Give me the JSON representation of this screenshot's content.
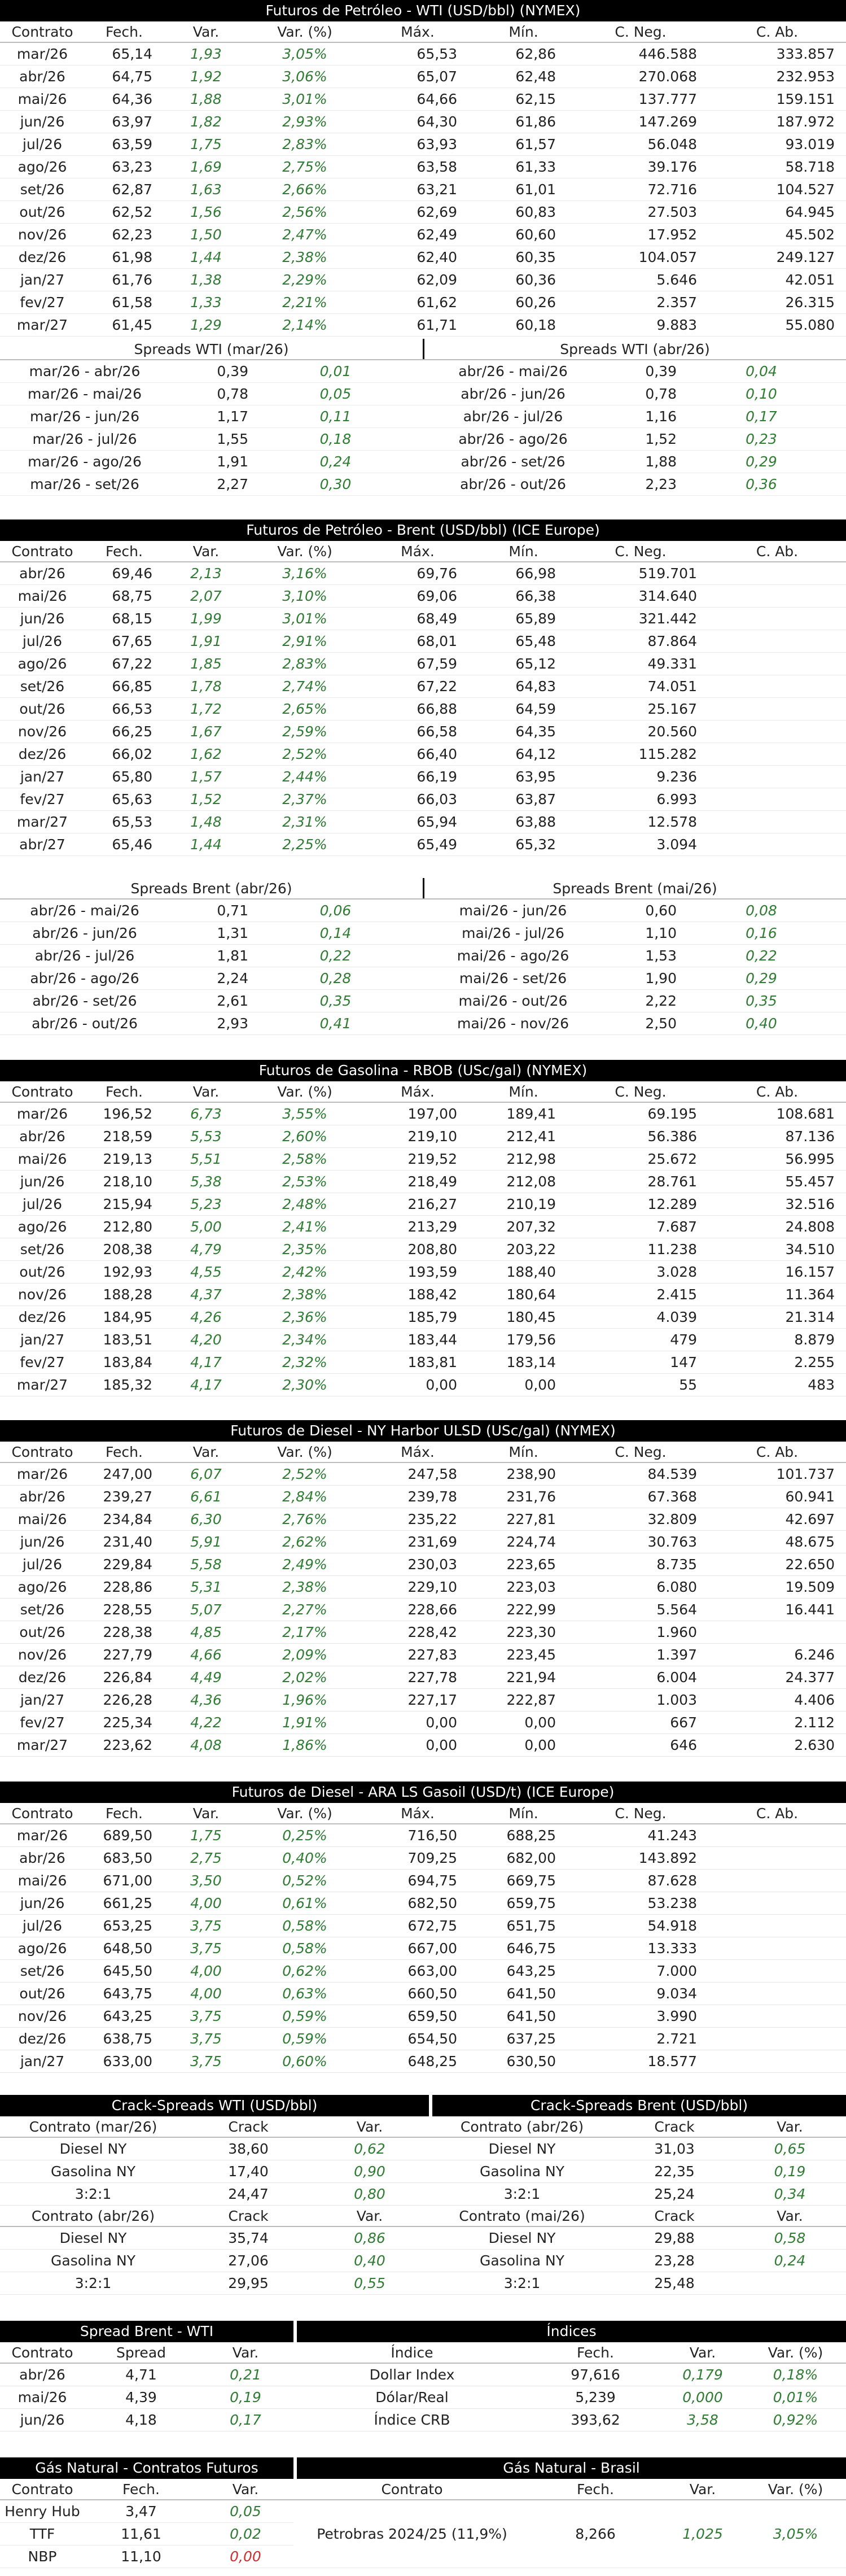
{
  "wti": {
    "title": "Futuros de Petróleo - WTI (USD/bbl) (NYMEX)",
    "cols": [
      "Contrato",
      "Fech.",
      "Var.",
      "Var. (%)",
      "Máx.",
      "Mín.",
      "C. Neg.",
      "C. Ab."
    ],
    "rows": [
      [
        "mar/26",
        "65,14",
        "1,93",
        "3,05%",
        "65,53",
        "62,86",
        "446.588",
        "333.857"
      ],
      [
        "abr/26",
        "64,75",
        "1,92",
        "3,06%",
        "65,07",
        "62,48",
        "270.068",
        "232.953"
      ],
      [
        "mai/26",
        "64,36",
        "1,88",
        "3,01%",
        "64,66",
        "62,15",
        "137.777",
        "159.151"
      ],
      [
        "jun/26",
        "63,97",
        "1,82",
        "2,93%",
        "64,30",
        "61,86",
        "147.269",
        "187.972"
      ],
      [
        "jul/26",
        "63,59",
        "1,75",
        "2,83%",
        "63,93",
        "61,57",
        "56.048",
        "93.019"
      ],
      [
        "ago/26",
        "63,23",
        "1,69",
        "2,75%",
        "63,58",
        "61,33",
        "39.176",
        "58.718"
      ],
      [
        "set/26",
        "62,87",
        "1,63",
        "2,66%",
        "63,21",
        "61,01",
        "72.716",
        "104.527"
      ],
      [
        "out/26",
        "62,52",
        "1,56",
        "2,56%",
        "62,69",
        "60,83",
        "27.503",
        "64.945"
      ],
      [
        "nov/26",
        "62,23",
        "1,50",
        "2,47%",
        "62,49",
        "60,60",
        "17.952",
        "45.502"
      ],
      [
        "dez/26",
        "61,98",
        "1,44",
        "2,38%",
        "62,40",
        "60,35",
        "104.057",
        "249.127"
      ],
      [
        "jan/27",
        "61,76",
        "1,38",
        "2,29%",
        "62,09",
        "60,36",
        "5.646",
        "42.051"
      ],
      [
        "fev/27",
        "61,58",
        "1,33",
        "2,21%",
        "61,62",
        "60,26",
        "2.357",
        "26.315"
      ],
      [
        "mar/27",
        "61,45",
        "1,29",
        "2,14%",
        "61,71",
        "60,18",
        "9.883",
        "55.080"
      ]
    ]
  },
  "wti_spreads": {
    "left_title": "Spreads WTI (mar/26)",
    "right_title": "Spreads WTI (abr/26)",
    "left": [
      [
        "mar/26 - abr/26",
        "0,39",
        "0,01"
      ],
      [
        "mar/26 - mai/26",
        "0,78",
        "0,05"
      ],
      [
        "mar/26 - jun/26",
        "1,17",
        "0,11"
      ],
      [
        "mar/26 - jul/26",
        "1,55",
        "0,18"
      ],
      [
        "mar/26 - ago/26",
        "1,91",
        "0,24"
      ],
      [
        "mar/26 - set/26",
        "2,27",
        "0,30"
      ]
    ],
    "right": [
      [
        "abr/26 - mai/26",
        "0,39",
        "0,04"
      ],
      [
        "abr/26 - jun/26",
        "0,78",
        "0,10"
      ],
      [
        "abr/26 - jul/26",
        "1,16",
        "0,17"
      ],
      [
        "abr/26 - ago/26",
        "1,52",
        "0,23"
      ],
      [
        "abr/26 - set/26",
        "1,88",
        "0,29"
      ],
      [
        "abr/26 - out/26",
        "2,23",
        "0,36"
      ]
    ]
  },
  "brent": {
    "title": "Futuros de Petróleo - Brent (USD/bbl) (ICE Europe)",
    "cols": [
      "Contrato",
      "Fech.",
      "Var.",
      "Var. (%)",
      "Máx.",
      "Mín.",
      "C. Neg.",
      "C. Ab."
    ],
    "rows": [
      [
        "abr/26",
        "69,46",
        "2,13",
        "3,16%",
        "69,76",
        "66,98",
        "519.701",
        ""
      ],
      [
        "mai/26",
        "68,75",
        "2,07",
        "3,10%",
        "69,06",
        "66,38",
        "314.640",
        ""
      ],
      [
        "jun/26",
        "68,15",
        "1,99",
        "3,01%",
        "68,49",
        "65,89",
        "321.442",
        ""
      ],
      [
        "jul/26",
        "67,65",
        "1,91",
        "2,91%",
        "68,01",
        "65,48",
        "87.864",
        ""
      ],
      [
        "ago/26",
        "67,22",
        "1,85",
        "2,83%",
        "67,59",
        "65,12",
        "49.331",
        ""
      ],
      [
        "set/26",
        "66,85",
        "1,78",
        "2,74%",
        "67,22",
        "64,83",
        "74.051",
        ""
      ],
      [
        "out/26",
        "66,53",
        "1,72",
        "2,65%",
        "66,88",
        "64,59",
        "25.167",
        ""
      ],
      [
        "nov/26",
        "66,25",
        "1,67",
        "2,59%",
        "66,58",
        "64,35",
        "20.560",
        ""
      ],
      [
        "dez/26",
        "66,02",
        "1,62",
        "2,52%",
        "66,40",
        "64,12",
        "115.282",
        ""
      ],
      [
        "jan/27",
        "65,80",
        "1,57",
        "2,44%",
        "66,19",
        "63,95",
        "9.236",
        ""
      ],
      [
        "fev/27",
        "65,63",
        "1,52",
        "2,37%",
        "66,03",
        "63,87",
        "6.993",
        ""
      ],
      [
        "mar/27",
        "65,53",
        "1,48",
        "2,31%",
        "65,94",
        "63,88",
        "12.578",
        ""
      ],
      [
        "abr/27",
        "65,46",
        "1,44",
        "2,25%",
        "65,49",
        "65,32",
        "3.094",
        ""
      ]
    ]
  },
  "brent_spreads": {
    "left_title": "Spreads Brent (abr/26)",
    "right_title": "Spreads Brent (mai/26)",
    "left": [
      [
        "abr/26 - mai/26",
        "0,71",
        "0,06"
      ],
      [
        "abr/26 - jun/26",
        "1,31",
        "0,14"
      ],
      [
        "abr/26 - jul/26",
        "1,81",
        "0,22"
      ],
      [
        "abr/26 - ago/26",
        "2,24",
        "0,28"
      ],
      [
        "abr/26 - set/26",
        "2,61",
        "0,35"
      ],
      [
        "abr/26 - out/26",
        "2,93",
        "0,41"
      ]
    ],
    "right": [
      [
        "mai/26 - jun/26",
        "0,60",
        "0,08"
      ],
      [
        "mai/26 - jul/26",
        "1,10",
        "0,16"
      ],
      [
        "mai/26 - ago/26",
        "1,53",
        "0,22"
      ],
      [
        "mai/26 - set/26",
        "1,90",
        "0,29"
      ],
      [
        "mai/26 - out/26",
        "2,22",
        "0,35"
      ],
      [
        "mai/26 - nov/26",
        "2,50",
        "0,40"
      ]
    ]
  },
  "rbob": {
    "title": "Futuros de Gasolina - RBOB (USc/gal) (NYMEX)",
    "cols": [
      "Contrato",
      "Fech.",
      "Var.",
      "Var. (%)",
      "Máx.",
      "Mín.",
      "C. Neg.",
      "C. Ab."
    ],
    "rows": [
      [
        "mar/26",
        "196,52",
        "6,73",
        "3,55%",
        "197,00",
        "189,41",
        "69.195",
        "108.681"
      ],
      [
        "abr/26",
        "218,59",
        "5,53",
        "2,60%",
        "219,10",
        "212,41",
        "56.386",
        "87.136"
      ],
      [
        "mai/26",
        "219,13",
        "5,51",
        "2,58%",
        "219,52",
        "212,98",
        "25.672",
        "56.995"
      ],
      [
        "jun/26",
        "218,10",
        "5,38",
        "2,53%",
        "218,49",
        "212,08",
        "28.761",
        "55.457"
      ],
      [
        "jul/26",
        "215,94",
        "5,23",
        "2,48%",
        "216,27",
        "210,19",
        "12.289",
        "32.516"
      ],
      [
        "ago/26",
        "212,80",
        "5,00",
        "2,41%",
        "213,29",
        "207,32",
        "7.687",
        "24.808"
      ],
      [
        "set/26",
        "208,38",
        "4,79",
        "2,35%",
        "208,80",
        "203,22",
        "11.238",
        "34.510"
      ],
      [
        "out/26",
        "192,93",
        "4,55",
        "2,42%",
        "193,59",
        "188,40",
        "3.028",
        "16.157"
      ],
      [
        "nov/26",
        "188,28",
        "4,37",
        "2,38%",
        "188,42",
        "180,64",
        "2.415",
        "11.364"
      ],
      [
        "dez/26",
        "184,95",
        "4,26",
        "2,36%",
        "185,79",
        "180,45",
        "4.039",
        "21.314"
      ],
      [
        "jan/27",
        "183,51",
        "4,20",
        "2,34%",
        "183,44",
        "179,56",
        "479",
        "8.879"
      ],
      [
        "fev/27",
        "183,84",
        "4,17",
        "2,32%",
        "183,81",
        "183,14",
        "147",
        "2.255"
      ],
      [
        "mar/27",
        "185,32",
        "4,17",
        "2,30%",
        "0,00",
        "0,00",
        "55",
        "483"
      ]
    ]
  },
  "diesel_ny": {
    "title": "Futuros de Diesel - NY Harbor ULSD (USc/gal) (NYMEX)",
    "cols": [
      "Contrato",
      "Fech.",
      "Var.",
      "Var. (%)",
      "Máx.",
      "Mín.",
      "C. Neg.",
      "C. Ab."
    ],
    "rows": [
      [
        "mar/26",
        "247,00",
        "6,07",
        "2,52%",
        "247,58",
        "238,90",
        "84.539",
        "101.737"
      ],
      [
        "abr/26",
        "239,27",
        "6,61",
        "2,84%",
        "239,78",
        "231,76",
        "67.368",
        "60.941"
      ],
      [
        "mai/26",
        "234,84",
        "6,30",
        "2,76%",
        "235,22",
        "227,81",
        "32.809",
        "42.697"
      ],
      [
        "jun/26",
        "231,40",
        "5,91",
        "2,62%",
        "231,69",
        "224,74",
        "30.763",
        "48.675"
      ],
      [
        "jul/26",
        "229,84",
        "5,58",
        "2,49%",
        "230,03",
        "223,65",
        "8.735",
        "22.650"
      ],
      [
        "ago/26",
        "228,86",
        "5,31",
        "2,38%",
        "229,10",
        "223,03",
        "6.080",
        "19.509"
      ],
      [
        "set/26",
        "228,55",
        "5,07",
        "2,27%",
        "228,66",
        "222,99",
        "5.564",
        "16.441"
      ],
      [
        "out/26",
        "228,38",
        "4,85",
        "2,17%",
        "228,42",
        "223,30",
        "1.960",
        ""
      ],
      [
        "nov/26",
        "227,79",
        "4,66",
        "2,09%",
        "227,83",
        "223,45",
        "1.397",
        "6.246"
      ],
      [
        "dez/26",
        "226,84",
        "4,49",
        "2,02%",
        "227,78",
        "221,94",
        "6.004",
        "24.377"
      ],
      [
        "jan/27",
        "226,28",
        "4,36",
        "1,96%",
        "227,17",
        "222,87",
        "1.003",
        "4.406"
      ],
      [
        "fev/27",
        "225,34",
        "4,22",
        "1,91%",
        "0,00",
        "0,00",
        "667",
        "2.112"
      ],
      [
        "mar/27",
        "223,62",
        "4,08",
        "1,86%",
        "0,00",
        "0,00",
        "646",
        "2.630"
      ]
    ]
  },
  "gasoil": {
    "title": "Futuros de Diesel - ARA LS Gasoil (USD/t) (ICE Europe)",
    "cols": [
      "Contrato",
      "Fech.",
      "Var.",
      "Var. (%)",
      "Máx.",
      "Mín.",
      "C. Neg.",
      "C. Ab."
    ],
    "rows": [
      [
        "mar/26",
        "689,50",
        "1,75",
        "0,25%",
        "716,50",
        "688,25",
        "41.243",
        ""
      ],
      [
        "abr/26",
        "683,50",
        "2,75",
        "0,40%",
        "709,25",
        "682,00",
        "143.892",
        ""
      ],
      [
        "mai/26",
        "671,00",
        "3,50",
        "0,52%",
        "694,75",
        "669,75",
        "87.628",
        ""
      ],
      [
        "jun/26",
        "661,25",
        "4,00",
        "0,61%",
        "682,50",
        "659,75",
        "53.238",
        ""
      ],
      [
        "jul/26",
        "653,25",
        "3,75",
        "0,58%",
        "672,75",
        "651,75",
        "54.918",
        ""
      ],
      [
        "ago/26",
        "648,50",
        "3,75",
        "0,58%",
        "667,00",
        "646,75",
        "13.333",
        ""
      ],
      [
        "set/26",
        "645,50",
        "4,00",
        "0,62%",
        "663,00",
        "643,25",
        "7.000",
        ""
      ],
      [
        "out/26",
        "643,75",
        "4,00",
        "0,63%",
        "660,50",
        "641,50",
        "9.034",
        ""
      ],
      [
        "nov/26",
        "643,25",
        "3,75",
        "0,59%",
        "659,50",
        "641,50",
        "3.990",
        ""
      ],
      [
        "dez/26",
        "638,75",
        "3,75",
        "0,59%",
        "654,50",
        "637,25",
        "2.721",
        ""
      ],
      [
        "jan/27",
        "633,00",
        "3,75",
        "0,60%",
        "648,25",
        "630,50",
        "18.577",
        ""
      ]
    ]
  },
  "crack": {
    "left_title": "Crack-Spreads WTI (USD/bbl)",
    "right_title": "Crack-Spreads Brent (USD/bbl)",
    "left": [
      {
        "head": [
          "Contrato (mar/26)",
          "Crack",
          "Var."
        ],
        "rows": [
          [
            "Diesel NY",
            "38,60",
            "0,62"
          ],
          [
            "Gasolina NY",
            "17,40",
            "0,90"
          ],
          [
            "3:2:1",
            "24,47",
            "0,80"
          ]
        ]
      },
      {
        "head": [
          "Contrato (abr/26)",
          "Crack",
          "Var."
        ],
        "rows": [
          [
            "Diesel NY",
            "35,74",
            "0,86"
          ],
          [
            "Gasolina NY",
            "27,06",
            "0,40"
          ],
          [
            "3:2:1",
            "29,95",
            "0,55"
          ]
        ]
      }
    ],
    "right": [
      {
        "head": [
          "Contrato (abr/26)",
          "Crack",
          "Var."
        ],
        "rows": [
          [
            "Diesel NY",
            "31,03",
            "0,65"
          ],
          [
            "Gasolina NY",
            "22,35",
            "0,19"
          ],
          [
            "3:2:1",
            "25,24",
            "0,34"
          ]
        ]
      },
      {
        "head": [
          "Contrato (mai/26)",
          "Crack",
          "Var."
        ],
        "rows": [
          [
            "Diesel NY",
            "29,88",
            "0,58"
          ],
          [
            "Gasolina NY",
            "23,28",
            "0,24"
          ],
          [
            "3:2:1",
            "25,48",
            ""
          ]
        ]
      }
    ]
  },
  "spread_bw": {
    "title": "Spread Brent - WTI",
    "head": [
      "Contrato",
      "Spread",
      "Var."
    ],
    "rows": [
      [
        "abr/26",
        "4,71",
        "0,21"
      ],
      [
        "mai/26",
        "4,39",
        "0,19"
      ],
      [
        "jun/26",
        "4,18",
        "0,17"
      ]
    ]
  },
  "indices": {
    "title": "Índices",
    "head": [
      "Índice",
      "Fech.",
      "Var.",
      "Var. (%)"
    ],
    "rows": [
      [
        "Dollar Index",
        "97,616",
        "0,179",
        "0,18%"
      ],
      [
        "Dólar/Real",
        "5,239",
        "0,000",
        "0,01%"
      ],
      [
        "Índice CRB",
        "393,62",
        "3,58",
        "0,92%"
      ]
    ]
  },
  "gas_fut": {
    "title": "Gás Natural - Contratos Futuros",
    "head": [
      "Contrato",
      "Fech.",
      "Var."
    ],
    "rows": [
      [
        "Henry Hub",
        "3,47",
        "0,05",
        ""
      ],
      [
        "TTF",
        "11,61",
        "0,02",
        ""
      ],
      [
        "NBP",
        "11,10",
        "0,00",
        "red"
      ]
    ]
  },
  "gas_br": {
    "title": "Gás Natural - Brasil",
    "head": [
      "Contrato",
      "Fech.",
      "Var.",
      "Var. (%)"
    ],
    "rows": [
      [
        "Petrobras 2024/25 (11,9%)",
        "8,266",
        "1,025",
        "3,05%"
      ]
    ]
  }
}
